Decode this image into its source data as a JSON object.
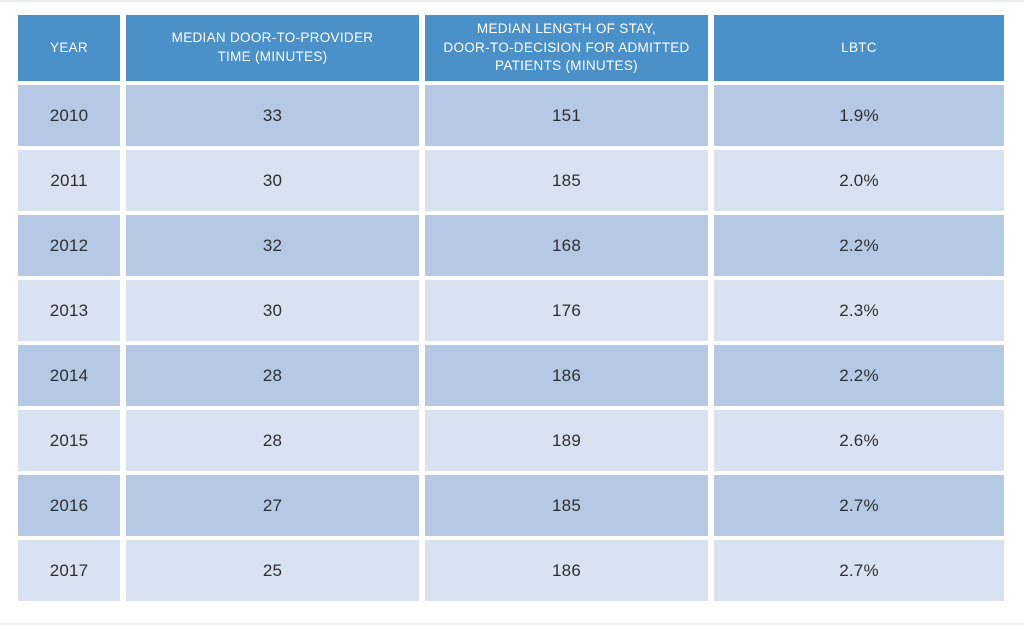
{
  "colors": {
    "header_bg": "#4a90c9",
    "row_dark": "#b5c9e5",
    "row_light": "#d8e2f1",
    "header_text": "#ffffff",
    "data_text": "#2f2f2f",
    "gap": "#ffffff"
  },
  "chart_data": {
    "type": "table",
    "columns": [
      "YEAR",
      "MEDIAN DOOR-TO-PROVIDER\nTIME (MINUTES)",
      "MEDIAN LENGTH OF STAY,\nDOOR-TO-DECISION FOR ADMITTED\nPATIENTS (MINUTES)",
      "LBTC"
    ],
    "rows": [
      [
        "2010",
        "33",
        "151",
        "1.9%"
      ],
      [
        "2011",
        "30",
        "185",
        "2.0%"
      ],
      [
        "2012",
        "32",
        "168",
        "2.2%"
      ],
      [
        "2013",
        "30",
        "176",
        "2.3%"
      ],
      [
        "2014",
        "28",
        "186",
        "2.2%"
      ],
      [
        "2015",
        "28",
        "189",
        "2.6%"
      ],
      [
        "2016",
        "27",
        "185",
        "2.7%"
      ],
      [
        "2017",
        "25",
        "186",
        "2.7%"
      ]
    ],
    "categories": [
      "2010",
      "2011",
      "2012",
      "2013",
      "2014",
      "2015",
      "2016",
      "2017"
    ],
    "series": [
      {
        "name": "Median door-to-provider time (minutes)",
        "values": [
          33,
          30,
          32,
          30,
          28,
          28,
          27,
          25
        ]
      },
      {
        "name": "Median length of stay, door-to-decision for admitted patients (minutes)",
        "values": [
          151,
          185,
          168,
          176,
          186,
          189,
          185,
          186
        ]
      },
      {
        "name": "LBTC (%)",
        "values": [
          1.9,
          2.0,
          2.2,
          2.3,
          2.2,
          2.6,
          2.7,
          2.7
        ]
      }
    ]
  }
}
